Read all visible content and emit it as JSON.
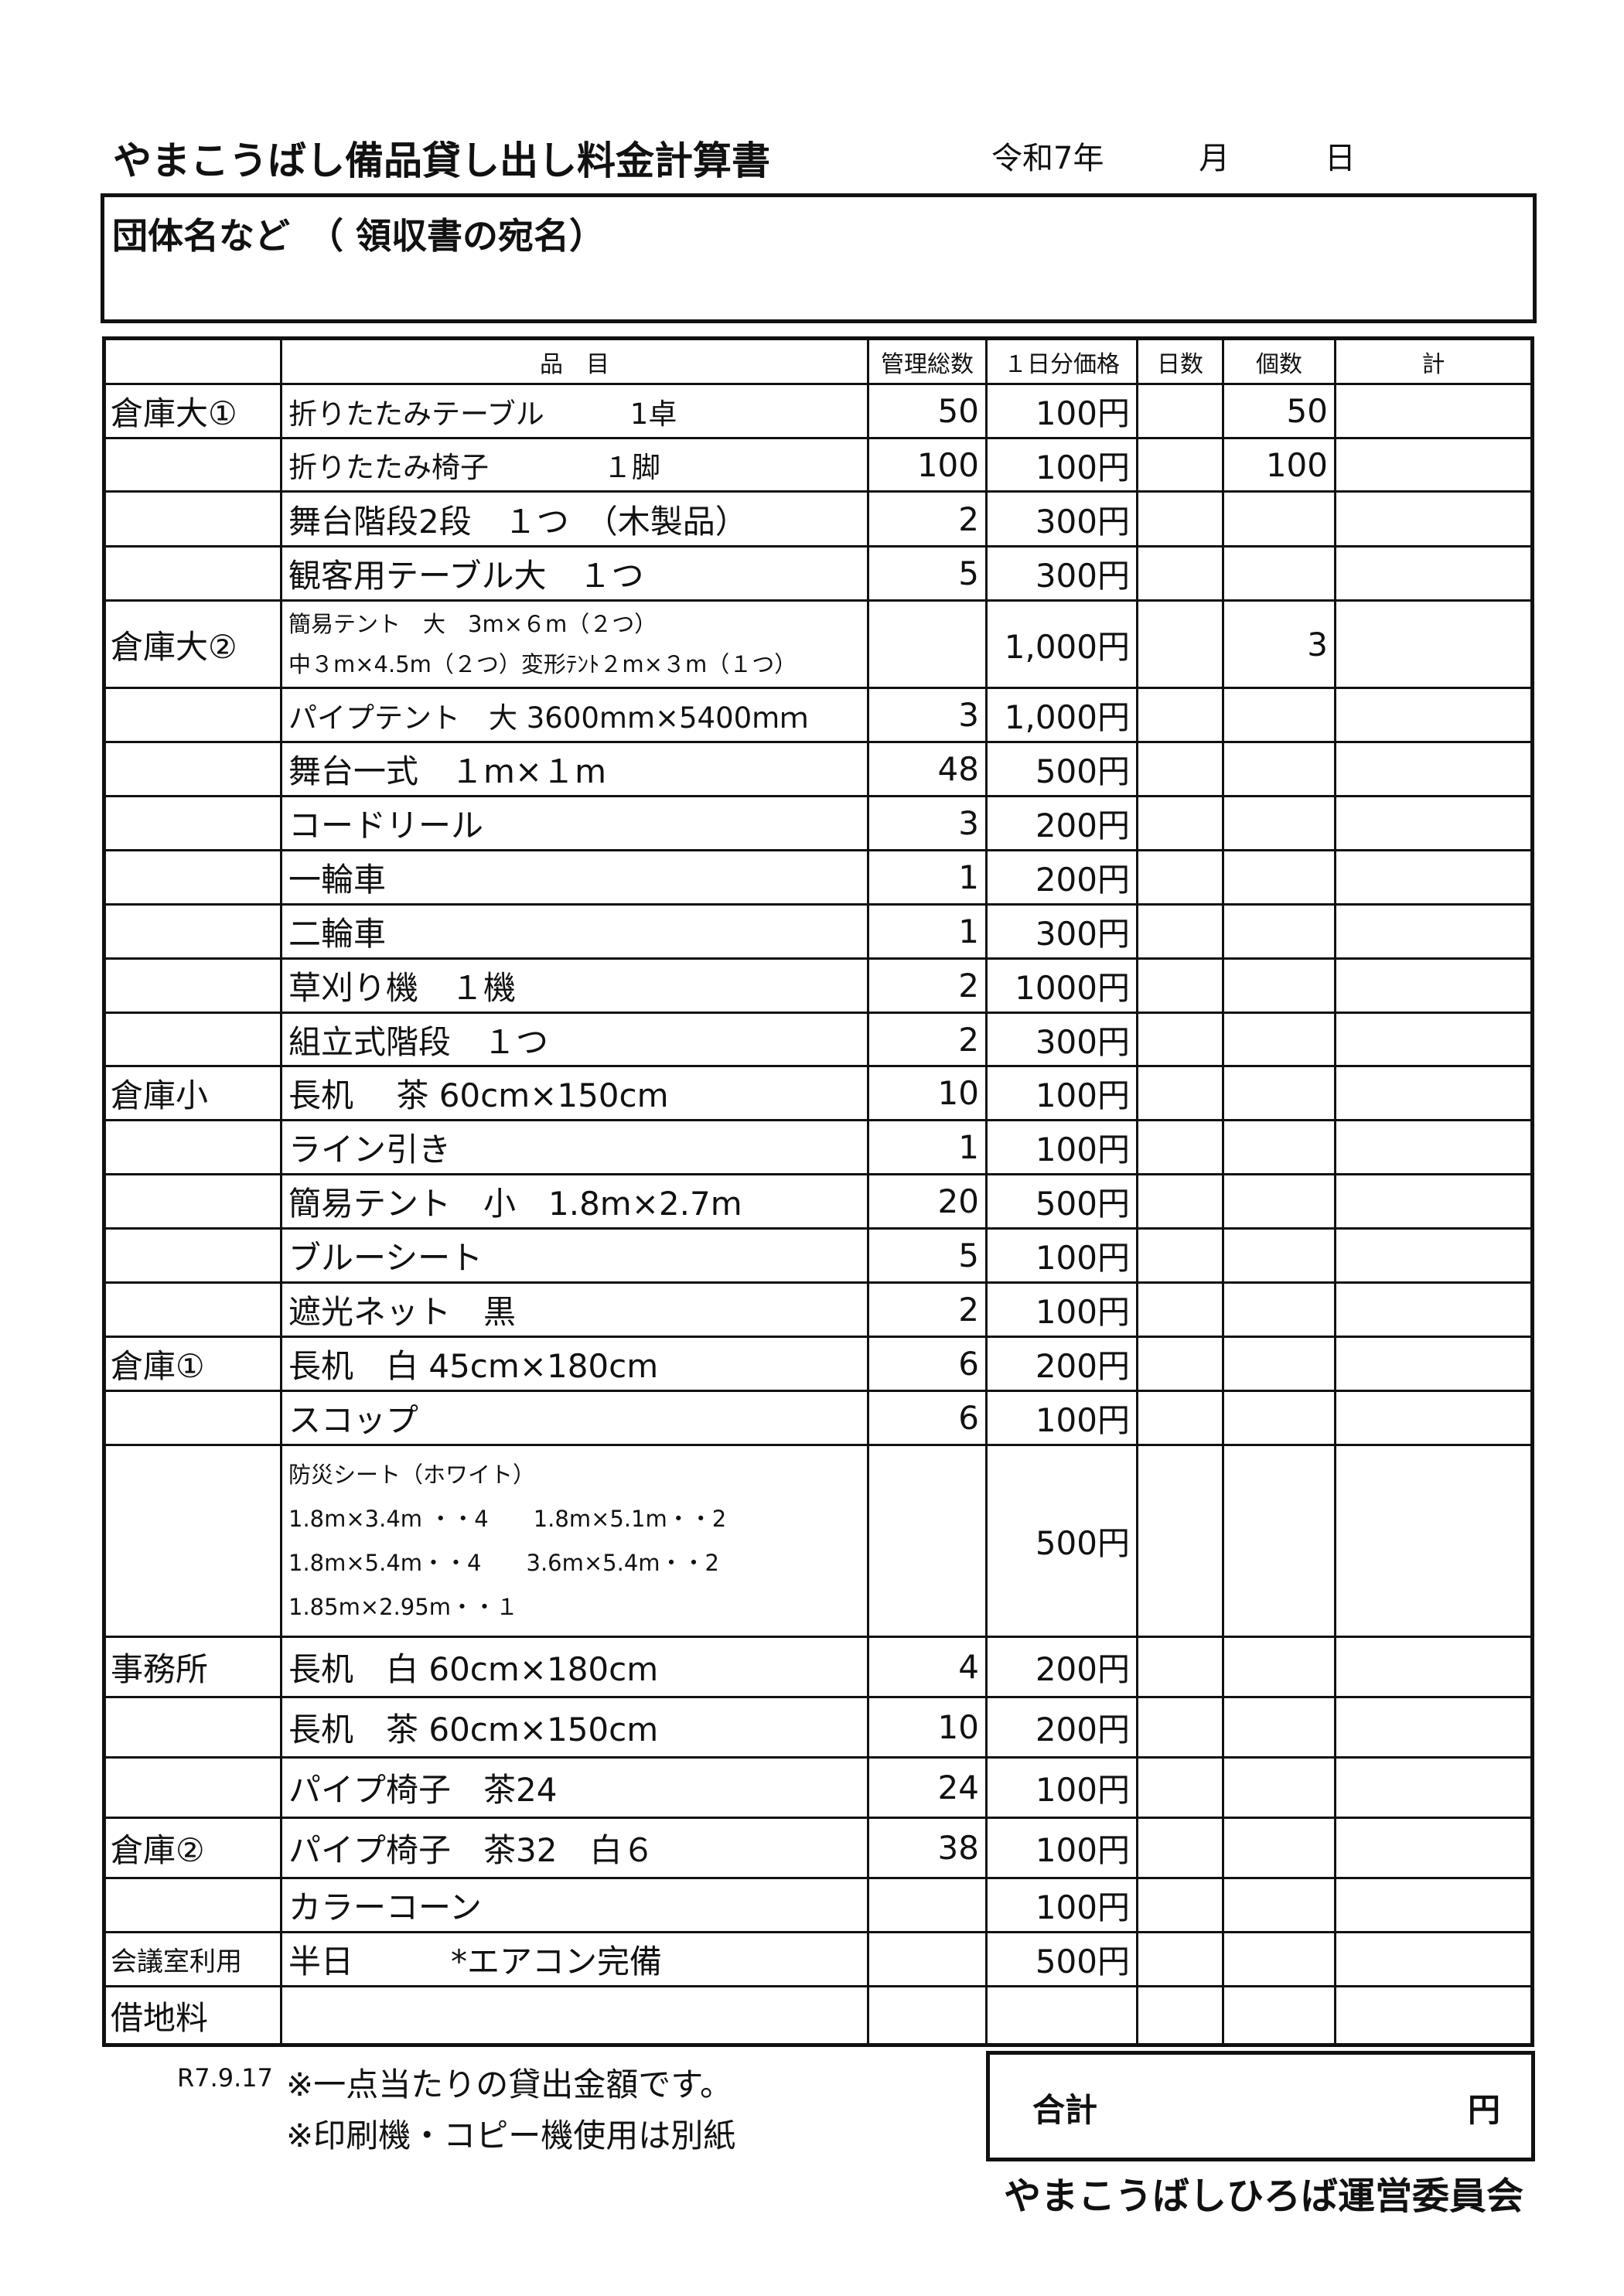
{
  "title": "やまこうばし備品貸し出し料金計算書",
  "date": {
    "era": "令和7年",
    "month": "月",
    "day": "日"
  },
  "name_box_label": "団体名など　（ 領収書の宛名）",
  "headers": [
    "",
    "品　目",
    "管理総数",
    "１日分価格",
    "日数",
    "個数",
    "計"
  ],
  "rows": [
    {
      "loc": "倉庫大①",
      "item": "折りたたみテーブル　　　1卓",
      "total": "50",
      "price": "100円",
      "days": "",
      "qty": "50",
      "sum": "",
      "small": true
    },
    {
      "loc": "",
      "item": "折りたたみ椅子　　　　１脚",
      "total": "100",
      "price": "100円",
      "days": "",
      "qty": "100",
      "sum": "",
      "small": true
    },
    {
      "loc": "",
      "item": "舞台階段2段　１つ　（木製品）",
      "total": "2",
      "price": "300円",
      "days": "",
      "qty": "",
      "sum": ""
    },
    {
      "loc": "",
      "item": "観客用テーブル大　１つ",
      "total": "5",
      "price": "300円",
      "days": "",
      "qty": "",
      "sum": ""
    },
    {
      "loc": "倉庫大②",
      "lines": [
        "簡易テント　大　3m×６m（２つ）",
        "中３m×4.5m（２つ）変形ﾃﾝﾄ２m×３m（１つ）"
      ],
      "total": "",
      "price": "1,000円",
      "days": "",
      "qty": "3",
      "sum": ""
    },
    {
      "loc": "",
      "item": "パイプテント　大 3600mm×5400mｍ",
      "total": "3",
      "price": "1,000円",
      "days": "",
      "qty": "",
      "sum": "",
      "small": true
    },
    {
      "loc": "",
      "item": "舞台一式　１m×１m",
      "total": "48",
      "price": "500円",
      "days": "",
      "qty": "",
      "sum": ""
    },
    {
      "loc": "",
      "item": "コードリール",
      "total": "3",
      "price": "200円",
      "days": "",
      "qty": "",
      "sum": ""
    },
    {
      "loc": "",
      "item": "一輪車",
      "total": "1",
      "price": "200円",
      "days": "",
      "qty": "",
      "sum": ""
    },
    {
      "loc": "",
      "item": "二輪車",
      "total": "1",
      "price": "300円",
      "days": "",
      "qty": "",
      "sum": ""
    },
    {
      "loc": "",
      "item": "草刈り機　１機",
      "total": "2",
      "price": "1000円",
      "days": "",
      "qty": "",
      "sum": ""
    },
    {
      "loc": "",
      "item": "組立式階段　１つ",
      "total": "2",
      "price": "300円",
      "days": "",
      "qty": "",
      "sum": ""
    },
    {
      "loc": "倉庫小",
      "item": "長机　 茶 60cm×150cm",
      "total": "10",
      "price": "100円",
      "days": "",
      "qty": "",
      "sum": ""
    },
    {
      "loc": "",
      "item": "ライン引き",
      "total": "1",
      "price": "100円",
      "days": "",
      "qty": "",
      "sum": ""
    },
    {
      "loc": "",
      "item": "簡易テント　小　1.8m×2.7m",
      "total": "20",
      "price": "500円",
      "days": "",
      "qty": "",
      "sum": ""
    },
    {
      "loc": "",
      "item": "ブルーシート",
      "total": "5",
      "price": "100円",
      "days": "",
      "qty": "",
      "sum": ""
    },
    {
      "loc": "",
      "item": "遮光ネット　黒",
      "total": "2",
      "price": "100円",
      "days": "",
      "qty": "",
      "sum": ""
    },
    {
      "loc": "倉庫①",
      "item": "長机　白 45cm×180cm",
      "total": "6",
      "price": "200円",
      "days": "",
      "qty": "",
      "sum": ""
    },
    {
      "loc": "",
      "item": "スコップ",
      "total": "6",
      "price": "100円",
      "days": "",
      "qty": "",
      "sum": ""
    },
    {
      "loc": "",
      "lines": [
        "防災シート（ホワイト）",
        "1.8m×3.4m ・・4　　1.8m×5.1m・・2",
        "1.8m×5.4m・・4　　3.6m×5.4m・・2",
        "1.85m×2.95m・・１"
      ],
      "total": "",
      "price": "500円",
      "days": "",
      "qty": "",
      "sum": ""
    },
    {
      "loc": "事務所",
      "item": "長机　白 60cm×180cm",
      "total": "4",
      "price": "200円",
      "days": "",
      "qty": "",
      "sum": ""
    },
    {
      "loc": "",
      "item": "長机　茶 60cm×150cm",
      "total": "10",
      "price": "200円",
      "days": "",
      "qty": "",
      "sum": ""
    },
    {
      "loc": "",
      "item": "パイプ椅子　茶24",
      "total": "24",
      "price": "100円",
      "days": "",
      "qty": "",
      "sum": ""
    },
    {
      "loc": "倉庫②",
      "item": "パイプ椅子　茶32　白６",
      "total": "38",
      "price": "100円",
      "days": "",
      "qty": "",
      "sum": ""
    },
    {
      "loc": "",
      "item": "カラーコーン",
      "total": "",
      "price": "100円",
      "days": "",
      "qty": "",
      "sum": ""
    },
    {
      "loc": "会議室利用",
      "item": "半日　　　*エアコン完備",
      "total": "",
      "price": "500円",
      "days": "",
      "qty": "",
      "sum": "",
      "smallloc": true
    },
    {
      "loc": "借地料",
      "item": "",
      "total": "",
      "price": "",
      "days": "",
      "qty": "",
      "sum": ""
    }
  ],
  "total": {
    "label": "合計",
    "unit": "円"
  },
  "revision": "R7.9.17",
  "notes": [
    "※一点当たりの貸出金額です。",
    "※印刷機・コピー機使用は別紙"
  ],
  "organization": "やまこうばしひろば運営委員会"
}
